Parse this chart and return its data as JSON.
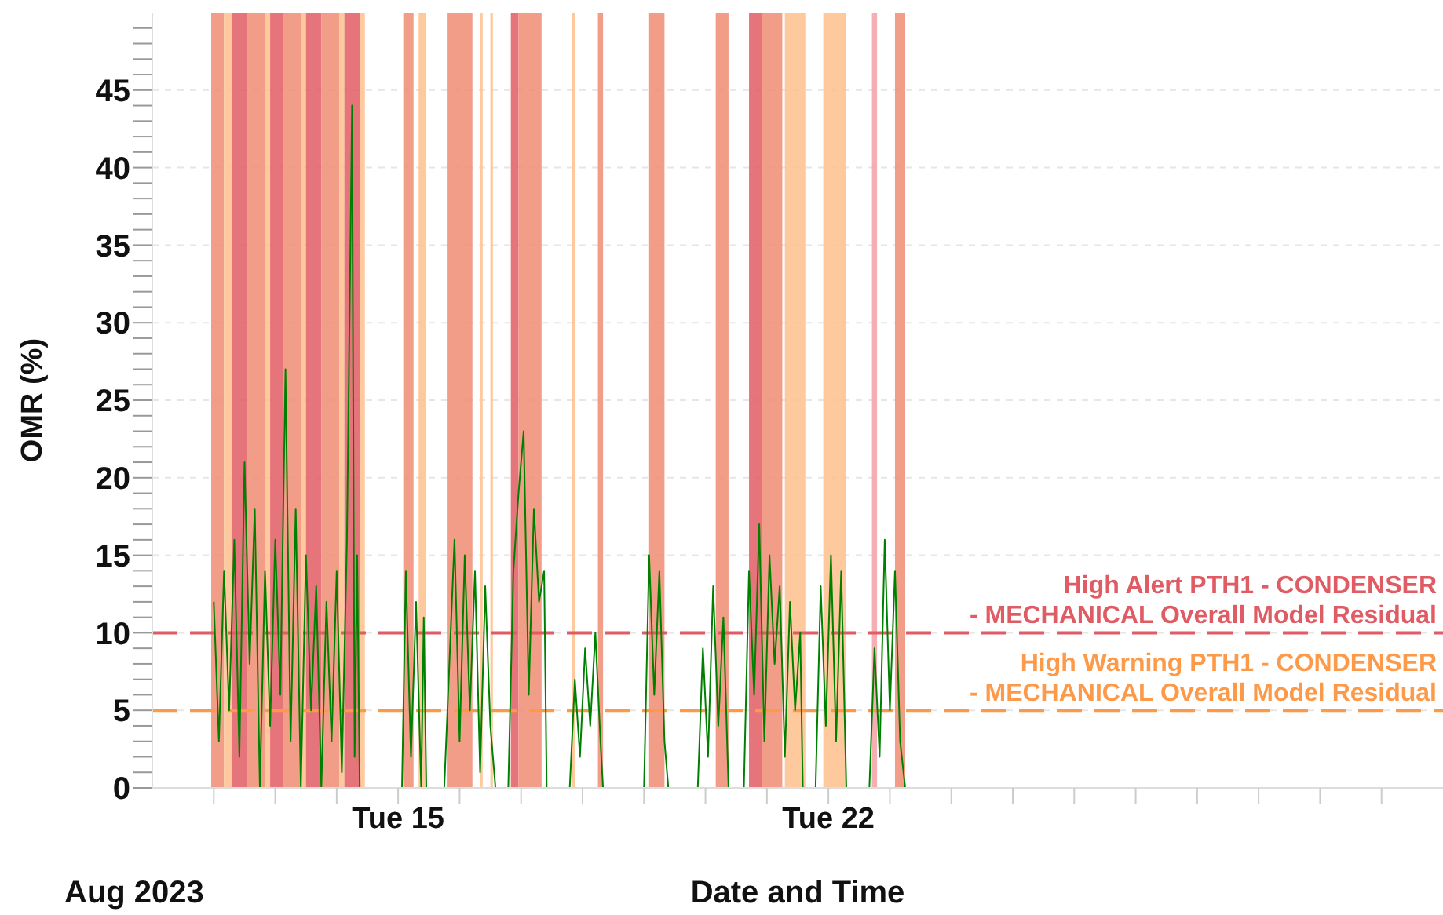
{
  "chart_data": {
    "type": "line",
    "xlabel": "Date and Time",
    "ylabel": "OMR (%)",
    "annotations": [
      "Aug 2023"
    ],
    "xlim": [
      "2023-08-11",
      "2023-09-01"
    ],
    "xticks": [
      {
        "value": "2023-08-12",
        "label": null
      },
      {
        "value": "2023-08-13",
        "label": null
      },
      {
        "value": "2023-08-14",
        "label": null
      },
      {
        "value": "2023-08-15",
        "label": "Tue 15"
      },
      {
        "value": "2023-08-16",
        "label": null
      },
      {
        "value": "2023-08-17",
        "label": null
      },
      {
        "value": "2023-08-18",
        "label": null
      },
      {
        "value": "2023-08-19",
        "label": null
      },
      {
        "value": "2023-08-20",
        "label": null
      },
      {
        "value": "2023-08-21",
        "label": null
      },
      {
        "value": "2023-08-22",
        "label": "Tue 22"
      },
      {
        "value": "2023-08-23",
        "label": null
      },
      {
        "value": "2023-08-24",
        "label": null
      },
      {
        "value": "2023-08-25",
        "label": null
      },
      {
        "value": "2023-08-26",
        "label": null
      },
      {
        "value": "2023-08-27",
        "label": null
      },
      {
        "value": "2023-08-28",
        "label": null
      },
      {
        "value": "2023-08-29",
        "label": null
      },
      {
        "value": "2023-08-30",
        "label": null
      },
      {
        "value": "2023-08-31",
        "label": null
      }
    ],
    "ylim": [
      0,
      50
    ],
    "yticks": [
      0,
      {
        "value": 1,
        "label": null
      },
      {
        "value": 2,
        "label": null
      },
      {
        "value": 3,
        "label": null
      },
      {
        "value": 4,
        "label": null
      },
      5,
      {
        "value": 6,
        "label": null
      },
      {
        "value": 7,
        "label": null
      },
      {
        "value": 8,
        "label": null
      },
      {
        "value": 9,
        "label": null
      },
      10,
      {
        "value": 11,
        "label": null
      },
      {
        "value": 12,
        "label": null
      },
      {
        "value": 13,
        "label": null
      },
      {
        "value": 14,
        "label": null
      },
      15,
      {
        "value": 16,
        "label": null
      },
      {
        "value": 17,
        "label": null
      },
      {
        "value": 18,
        "label": null
      },
      {
        "value": 19,
        "label": null
      },
      20,
      {
        "value": 21,
        "label": null
      },
      {
        "value": 22,
        "label": null
      },
      {
        "value": 23,
        "label": null
      },
      {
        "value": 24,
        "label": null
      },
      25,
      {
        "value": 26,
        "label": null
      },
      {
        "value": 27,
        "label": null
      },
      {
        "value": 28,
        "label": null
      },
      {
        "value": 29,
        "label": null
      },
      30,
      {
        "value": 31,
        "label": null
      },
      {
        "value": 32,
        "label": null
      },
      {
        "value": 33,
        "label": null
      },
      {
        "value": 34,
        "label": null
      },
      35,
      {
        "value": 36,
        "label": null
      },
      {
        "value": 37,
        "label": null
      },
      {
        "value": 38,
        "label": null
      },
      {
        "value": 39,
        "label": null
      },
      40,
      {
        "value": 41,
        "label": null
      },
      {
        "value": 42,
        "label": null
      },
      {
        "value": 43,
        "label": null
      },
      {
        "value": 44,
        "label": null
      },
      45,
      {
        "value": 46,
        "label": null
      },
      {
        "value": 47,
        "label": null
      },
      {
        "value": 48,
        "label": null
      },
      {
        "value": 49,
        "label": null
      }
    ],
    "grid": "y",
    "line_style": "solid",
    "marker": "none",
    "series": [
      {
        "color": "#008000",
        "x": [
          "2023-08-12T00:00",
          "2023-08-12T02:00",
          "2023-08-12T04:00",
          "2023-08-12T06:00",
          "2023-08-12T08:00",
          "2023-08-12T10:00",
          "2023-08-12T12:00",
          "2023-08-12T14:00",
          "2023-08-12T16:00",
          "2023-08-12T18:00",
          "2023-08-12T20:00",
          "2023-08-12T22:00",
          "2023-08-13T00:00",
          "2023-08-13T02:00",
          "2023-08-13T04:00",
          "2023-08-13T06:00",
          "2023-08-13T08:00",
          "2023-08-13T10:00",
          "2023-08-13T12:00",
          "2023-08-13T14:00",
          "2023-08-13T16:00",
          "2023-08-13T18:00",
          "2023-08-13T20:00",
          "2023-08-13T22:00",
          "2023-08-14T00:00",
          "2023-08-14T02:00",
          "2023-08-14T04:00",
          "2023-08-14T06:00",
          "2023-08-14T07:00",
          "2023-08-14T08:00",
          "2023-08-14T09:00",
          "2023-08-14T18:00",
          "2023-08-15T01:30",
          "2023-08-15T03:00",
          "2023-08-15T05:00",
          "2023-08-15T07:00",
          "2023-08-15T09:00",
          "2023-08-15T10:00",
          "2023-08-15T11:00",
          "2023-08-15T14:00",
          "2023-08-15T18:00",
          "2023-08-15T20:00",
          "2023-08-15T22:00",
          "2023-08-16T00:00",
          "2023-08-16T02:00",
          "2023-08-16T04:00",
          "2023-08-16T06:00",
          "2023-08-16T08:00",
          "2023-08-16T10:00",
          "2023-08-16T12:00",
          "2023-08-16T14:00",
          "2023-08-16T16:00",
          "2023-08-16T19:00",
          "2023-08-16T21:00",
          "2023-08-16T23:00",
          "2023-08-17T01:00",
          "2023-08-17T03:00",
          "2023-08-17T05:00",
          "2023-08-17T07:00",
          "2023-08-17T09:00",
          "2023-08-17T10:00",
          "2023-08-17T14:00",
          "2023-08-17T19:00",
          "2023-08-17T21:00",
          "2023-08-17T23:00",
          "2023-08-18T01:00",
          "2023-08-18T03:00",
          "2023-08-18T05:00",
          "2023-08-18T07:00",
          "2023-08-18T08:00",
          "2023-08-18T16:00",
          "2023-08-19T00:00",
          "2023-08-19T02:00",
          "2023-08-19T04:00",
          "2023-08-19T06:00",
          "2023-08-19T08:00",
          "2023-08-19T09:30",
          "2023-08-19T15:00",
          "2023-08-19T21:00",
          "2023-08-19T23:00",
          "2023-08-20T01:00",
          "2023-08-20T03:00",
          "2023-08-20T05:00",
          "2023-08-20T07:00",
          "2023-08-20T09:00",
          "2023-08-20T12:00",
          "2023-08-20T15:00",
          "2023-08-20T17:00",
          "2023-08-20T19:00",
          "2023-08-20T21:00",
          "2023-08-20T23:00",
          "2023-08-21T01:00",
          "2023-08-21T03:00",
          "2023-08-21T05:00",
          "2023-08-21T07:00",
          "2023-08-21T09:00",
          "2023-08-21T11:00",
          "2023-08-21T13:00",
          "2023-08-21T14:00",
          "2023-08-21T16:00",
          "2023-08-21T19:00",
          "2023-08-21T21:00",
          "2023-08-21T23:00",
          "2023-08-22T01:00",
          "2023-08-22T03:00",
          "2023-08-22T05:00",
          "2023-08-22T07:00",
          "2023-08-22T12:00",
          "2023-08-22T16:00",
          "2023-08-22T18:00",
          "2023-08-22T20:00",
          "2023-08-22T22:00",
          "2023-08-23T00:00",
          "2023-08-23T02:00",
          "2023-08-23T04:00",
          "2023-08-23T06:00"
        ],
        "values": [
          12,
          3,
          14,
          5,
          16,
          2,
          21,
          8,
          18,
          0,
          14,
          4,
          16,
          6,
          27,
          3,
          18,
          0,
          15,
          5,
          13,
          0,
          12,
          3,
          14,
          1,
          16,
          44,
          2,
          15,
          0,
          null,
          0,
          14,
          2,
          12,
          0,
          11,
          0,
          null,
          0,
          8,
          16,
          3,
          15,
          5,
          14,
          1,
          13,
          4,
          0,
          null,
          0,
          14,
          19,
          23,
          6,
          18,
          12,
          14,
          0,
          null,
          0,
          7,
          2,
          9,
          4,
          10,
          3,
          0,
          null,
          0,
          15,
          6,
          14,
          3,
          0,
          null,
          0,
          9,
          2,
          13,
          4,
          11,
          0,
          null,
          0,
          14,
          6,
          17,
          3,
          15,
          8,
          13,
          2,
          12,
          5,
          10,
          0,
          null,
          0,
          13,
          4,
          15,
          3,
          14,
          0,
          null,
          0,
          9,
          2,
          16,
          5,
          14,
          3,
          0
        ]
      }
    ],
    "ref_lines": [
      {
        "axis": "y",
        "value": 10,
        "label": "High Alert PTH1 - CONDENSER - MECHANICAL Overall Model Residual",
        "color": "#e05c64",
        "line_style": "dashed"
      },
      {
        "axis": "y",
        "value": 5,
        "label": "High Warning PTH1 - CONDENSER - MECHANICAL Overall Model Residual",
        "color": "#fd9a4a",
        "line_style": "dashed"
      }
    ],
    "bands": [
      {
        "axis": "x",
        "from": "2023-08-11T23:00",
        "to": "2023-08-12T04:00",
        "color": "#f08c72"
      },
      {
        "axis": "x",
        "from": "2023-08-12T04:00",
        "to": "2023-08-12T07:00",
        "color": "#fdc08c"
      },
      {
        "axis": "x",
        "from": "2023-08-12T07:00",
        "to": "2023-08-12T13:00",
        "color": "#e05c64"
      },
      {
        "axis": "x",
        "from": "2023-08-12T13:00",
        "to": "2023-08-12T20:00",
        "color": "#f08c72"
      },
      {
        "axis": "x",
        "from": "2023-08-12T20:00",
        "to": "2023-08-12T22:00",
        "color": "#fdc08c"
      },
      {
        "axis": "x",
        "from": "2023-08-12T22:00",
        "to": "2023-08-13T03:00",
        "color": "#e05c64"
      },
      {
        "axis": "x",
        "from": "2023-08-13T03:00",
        "to": "2023-08-13T10:00",
        "color": "#f08c72"
      },
      {
        "axis": "x",
        "from": "2023-08-13T10:00",
        "to": "2023-08-13T12:00",
        "color": "#fdc08c"
      },
      {
        "axis": "x",
        "from": "2023-08-13T12:00",
        "to": "2023-08-13T18:00",
        "color": "#e05c64"
      },
      {
        "axis": "x",
        "from": "2023-08-13T18:00",
        "to": "2023-08-14T01:00",
        "color": "#f08c72"
      },
      {
        "axis": "x",
        "from": "2023-08-14T01:00",
        "to": "2023-08-14T03:00",
        "color": "#fdc08c"
      },
      {
        "axis": "x",
        "from": "2023-08-14T03:00",
        "to": "2023-08-14T09:00",
        "color": "#e05c64"
      },
      {
        "axis": "x",
        "from": "2023-08-14T09:00",
        "to": "2023-08-14T11:00",
        "color": "#fdc08c"
      },
      {
        "axis": "x",
        "from": "2023-08-15T02:00",
        "to": "2023-08-15T06:00",
        "color": "#f08c72"
      },
      {
        "axis": "x",
        "from": "2023-08-15T08:00",
        "to": "2023-08-15T11:00",
        "color": "#fdc08c"
      },
      {
        "axis": "x",
        "from": "2023-08-15T19:00",
        "to": "2023-08-16T05:00",
        "color": "#f08c72"
      },
      {
        "axis": "x",
        "from": "2023-08-16T08:00",
        "to": "2023-08-16T09:00",
        "color": "#fdc08c"
      },
      {
        "axis": "x",
        "from": "2023-08-16T12:00",
        "to": "2023-08-16T13:00",
        "color": "#fdc08c"
      },
      {
        "axis": "x",
        "from": "2023-08-16T20:00",
        "to": "2023-08-16T23:00",
        "color": "#e05c64"
      },
      {
        "axis": "x",
        "from": "2023-08-16T23:00",
        "to": "2023-08-17T08:00",
        "color": "#f08c72"
      },
      {
        "axis": "x",
        "from": "2023-08-17T20:00",
        "to": "2023-08-17T21:00",
        "color": "#fdc08c"
      },
      {
        "axis": "x",
        "from": "2023-08-18T06:00",
        "to": "2023-08-18T08:00",
        "color": "#f08c72"
      },
      {
        "axis": "x",
        "from": "2023-08-19T02:00",
        "to": "2023-08-19T08:00",
        "color": "#f08c72"
      },
      {
        "axis": "x",
        "from": "2023-08-20T04:00",
        "to": "2023-08-20T09:00",
        "color": "#f08c72"
      },
      {
        "axis": "x",
        "from": "2023-08-20T17:00",
        "to": "2023-08-20T22:00",
        "color": "#e05c64"
      },
      {
        "axis": "x",
        "from": "2023-08-20T22:00",
        "to": "2023-08-21T06:00",
        "color": "#f08c72"
      },
      {
        "axis": "x",
        "from": "2023-08-21T07:00",
        "to": "2023-08-21T15:00",
        "color": "#fdc08c"
      },
      {
        "axis": "x",
        "from": "2023-08-21T22:00",
        "to": "2023-08-22T07:00",
        "color": "#fdc08c"
      },
      {
        "axis": "x",
        "from": "2023-08-22T17:00",
        "to": "2023-08-22T19:00",
        "color": "#f3a0a4"
      },
      {
        "axis": "x",
        "from": "2023-08-23T02:00",
        "to": "2023-08-23T06:00",
        "color": "#f08c72"
      }
    ]
  }
}
